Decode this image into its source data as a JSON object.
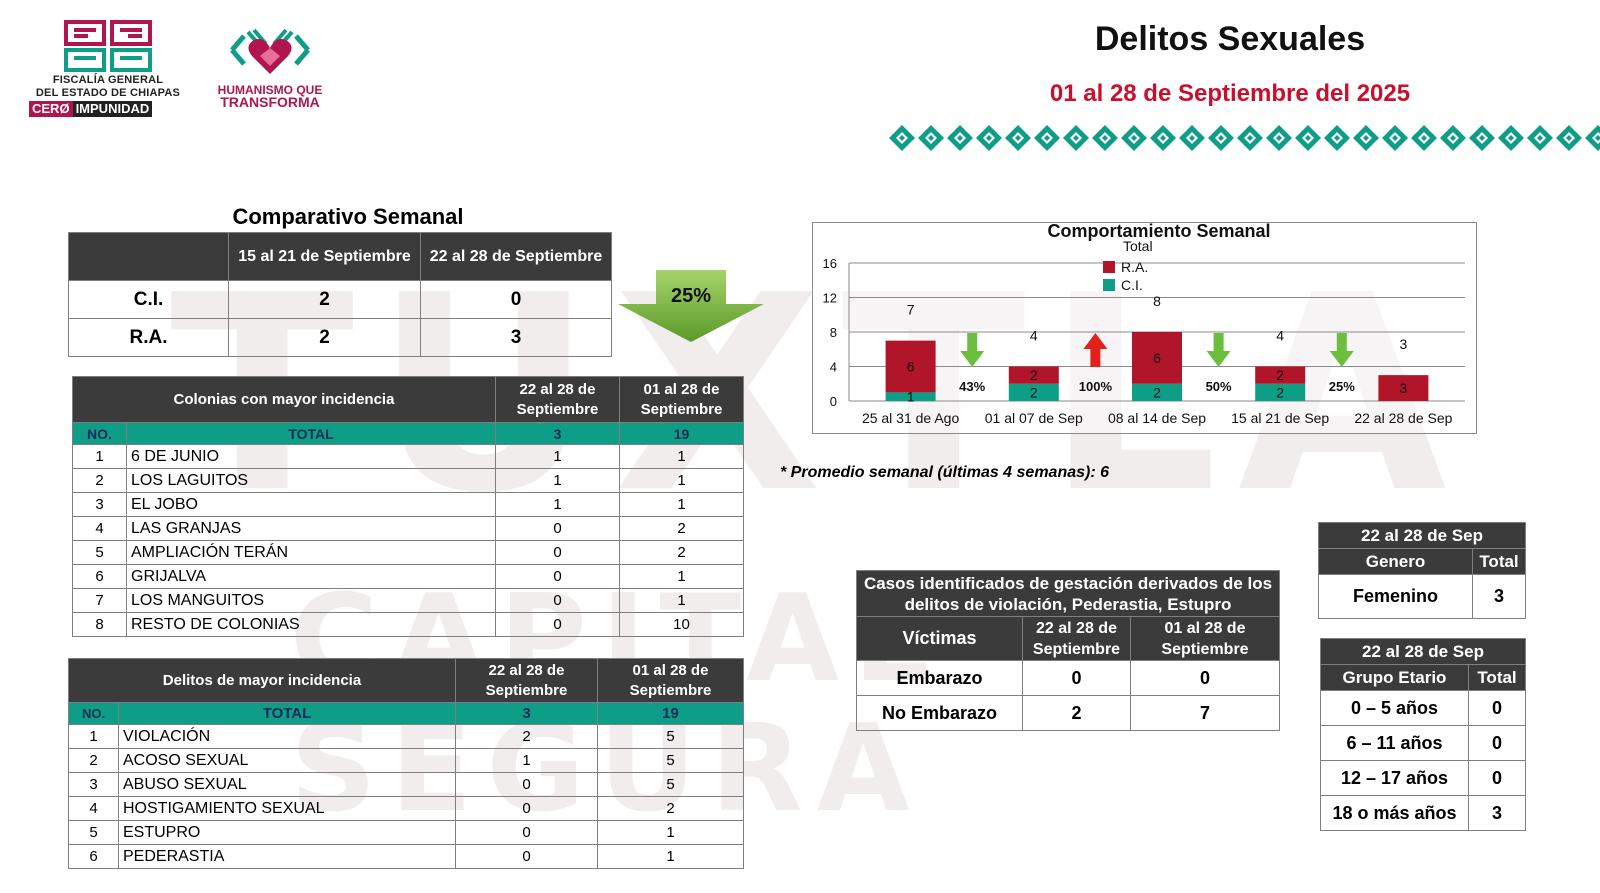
{
  "header": {
    "fge_lines": [
      "FISCALÍA GENERAL",
      "DEL ESTADO DE CHIAPAS"
    ],
    "cero": "CERØ",
    "impunidad": "IMPUNIDAD",
    "humanismo_lines": [
      "HUMANISMO QUE",
      "TRANSFORMA"
    ],
    "title": "Delitos Sexuales",
    "subtitle": "01 al 28 de Septiembre del 2025",
    "accent_red": "#c8102e",
    "accent_teal": "#0e9e88",
    "accent_magenta": "#b0154f"
  },
  "watermark": {
    "letters": "TUXTLA",
    "line2": "CAPITAL SEGURA"
  },
  "comparativo": {
    "title": "Comparativo Semanal",
    "col1": "15 al 21 de Septiembre",
    "col2": "22 al 28 de Septiembre",
    "rows": [
      {
        "label": "C.I.",
        "v1": "2",
        "v2": "0"
      },
      {
        "label": "R.A.",
        "v1": "2",
        "v2": "3"
      }
    ],
    "change": "25%"
  },
  "colonias": {
    "title": "Colonias con mayor incidencia",
    "col1": "22 al 28 de Septiembre",
    "col2": "01 al 28 de Septiembre",
    "no_label": "NO.",
    "total_label": "TOTAL",
    "total1": "3",
    "total2": "19",
    "rows": [
      {
        "n": "1",
        "name": "6 DE JUNIO",
        "v1": "1",
        "v2": "1"
      },
      {
        "n": "2",
        "name": "LOS LAGUITOS",
        "v1": "1",
        "v2": "1"
      },
      {
        "n": "3",
        "name": "EL JOBO",
        "v1": "1",
        "v2": "1"
      },
      {
        "n": "4",
        "name": "LAS GRANJAS",
        "v1": "0",
        "v2": "2"
      },
      {
        "n": "5",
        "name": "AMPLIACIÓN TERÁN",
        "v1": "0",
        "v2": "2"
      },
      {
        "n": "6",
        "name": "GRIJALVA",
        "v1": "0",
        "v2": "1"
      },
      {
        "n": "7",
        "name": "LOS MANGUITOS",
        "v1": "0",
        "v2": "1"
      },
      {
        "n": "8",
        "name": "RESTO DE COLONIAS",
        "v1": "0",
        "v2": "10"
      }
    ]
  },
  "delitos": {
    "title": "Delitos de mayor incidencia",
    "col1": "22 al 28 de Septiembre",
    "col2": "01 al 28 de Septiembre",
    "no_label": "NO.",
    "total_label": "TOTAL",
    "total1": "3",
    "total2": "19",
    "rows": [
      {
        "n": "1",
        "name": "VIOLACIÓN",
        "v1": "2",
        "v2": "5"
      },
      {
        "n": "2",
        "name": "ACOSO SEXUAL",
        "v1": "1",
        "v2": "5"
      },
      {
        "n": "3",
        "name": "ABUSO SEXUAL",
        "v1": "0",
        "v2": "5"
      },
      {
        "n": "4",
        "name": "HOSTIGAMIENTO SEXUAL",
        "v1": "0",
        "v2": "2"
      },
      {
        "n": "5",
        "name": "ESTUPRO",
        "v1": "0",
        "v2": "1"
      },
      {
        "n": "6",
        "name": "PEDERASTIA",
        "v1": "0",
        "v2": "1"
      }
    ]
  },
  "chart_data": {
    "type": "bar",
    "stacked": true,
    "title": "Comportamiento Semanal",
    "categories": [
      "25 al 31 de Ago",
      "01 al 07 de Sep",
      "08 al 14 de Sep",
      "15 al 21 de Sep",
      "22 al 28 de Sep"
    ],
    "series": [
      {
        "name": "C.I.",
        "color": "#0e9e88",
        "values": [
          1,
          2,
          2,
          2,
          0
        ]
      },
      {
        "name": "R.A.",
        "color": "#b0152a",
        "values": [
          6,
          2,
          6,
          2,
          3
        ]
      }
    ],
    "ra_labels": [
      "6",
      "2",
      "6",
      "2",
      "3"
    ],
    "ci_labels": [
      "1",
      "2",
      "2",
      "2",
      ""
    ],
    "totals": [
      7,
      4,
      8,
      4,
      3
    ],
    "total_legend": "Total",
    "changes": [
      {
        "label": "43%",
        "direction": "down"
      },
      {
        "label": "100%",
        "direction": "up"
      },
      {
        "label": "50%",
        "direction": "down"
      },
      {
        "label": "25%",
        "direction": "down"
      }
    ],
    "yticks": [
      0,
      4,
      8,
      12,
      16
    ],
    "ylim": [
      0,
      16
    ],
    "grid": true,
    "legend_position": "top-center"
  },
  "footnote": "* Promedio semanal (últimas 4 semanas): 6",
  "gestacion": {
    "title": "Casos identificados de gestación derivados de los delitos de violación, Pederastia, Estupro",
    "victimas": "Víctimas",
    "col1": "22 al 28 de Septiembre",
    "col2": "01 al 28 de Septiembre",
    "rows": [
      {
        "label": "Embarazo",
        "v1": "0",
        "v2": "0"
      },
      {
        "label": "No Embarazo",
        "v1": "2",
        "v2": "7"
      }
    ]
  },
  "genero": {
    "period": "22 al 28 de Sep",
    "col1": "Genero",
    "col2": "Total",
    "rows": [
      {
        "label": "Femenino",
        "v": "3"
      }
    ]
  },
  "edad": {
    "period": "22 al 28 de Sep",
    "col1": "Grupo Etario",
    "col2": "Total",
    "rows": [
      {
        "label": "0 – 5 años",
        "v": "0"
      },
      {
        "label": "6 – 11 años",
        "v": "0"
      },
      {
        "label": "12 – 17 años",
        "v": "0"
      },
      {
        "label": "18 o más años",
        "v": "3"
      }
    ]
  }
}
